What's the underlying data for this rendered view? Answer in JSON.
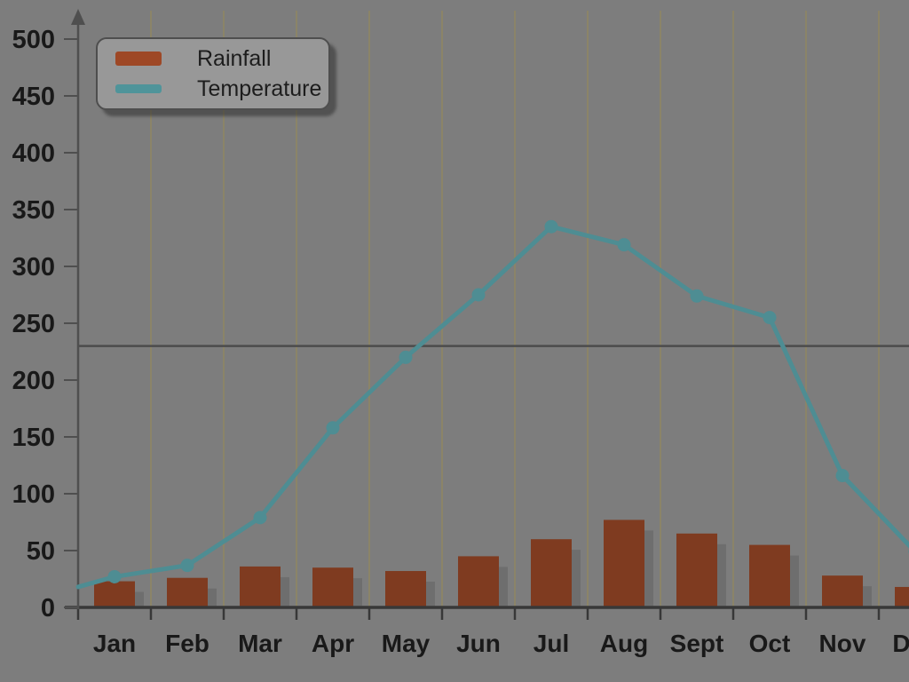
{
  "colors": {
    "background": "#7d7d7d",
    "gridline": "#8b8468",
    "x_axis": "#383838",
    "y_axis": "#4f4f4f",
    "reference_line": "#4c4c4c",
    "bar_shadow": "#6e6e6e",
    "legend_background": "#989898",
    "legend_border": "#4e4e4e",
    "label_text": "#191919",
    "rainfall_swatch": "#9e4826",
    "temperature_swatch": "#4f949a"
  },
  "chart_data": {
    "type": "combo",
    "categories": [
      "Jan",
      "Feb",
      "Mar",
      "Apr",
      "May",
      "Jun",
      "Jul",
      "Aug",
      "Sept",
      "Oct",
      "Nov",
      "Dec"
    ],
    "series": [
      {
        "name": "Rainfall",
        "type": "bar",
        "color": "#7f3b20",
        "values": [
          23,
          26,
          36,
          35,
          32,
          45,
          60,
          77,
          65,
          55,
          28,
          18
        ]
      },
      {
        "name": "Temperature",
        "type": "line",
        "color": "#4e8d93",
        "values": [
          27,
          37,
          79,
          158,
          220,
          275,
          335,
          319,
          274,
          255,
          116,
          49
        ],
        "line_start_at_axis_value": 18
      }
    ],
    "ylim": [
      0,
      500
    ],
    "y_ticks": [
      0,
      50,
      100,
      150,
      200,
      250,
      300,
      350,
      400,
      450,
      500
    ],
    "reference_line_y": 230,
    "legend_position": "top-left",
    "legend_entries": [
      "Rainfall",
      "Temperature"
    ],
    "grid": "vertical lines at category boundaries, last category (Dec) clipped by right edge"
  }
}
